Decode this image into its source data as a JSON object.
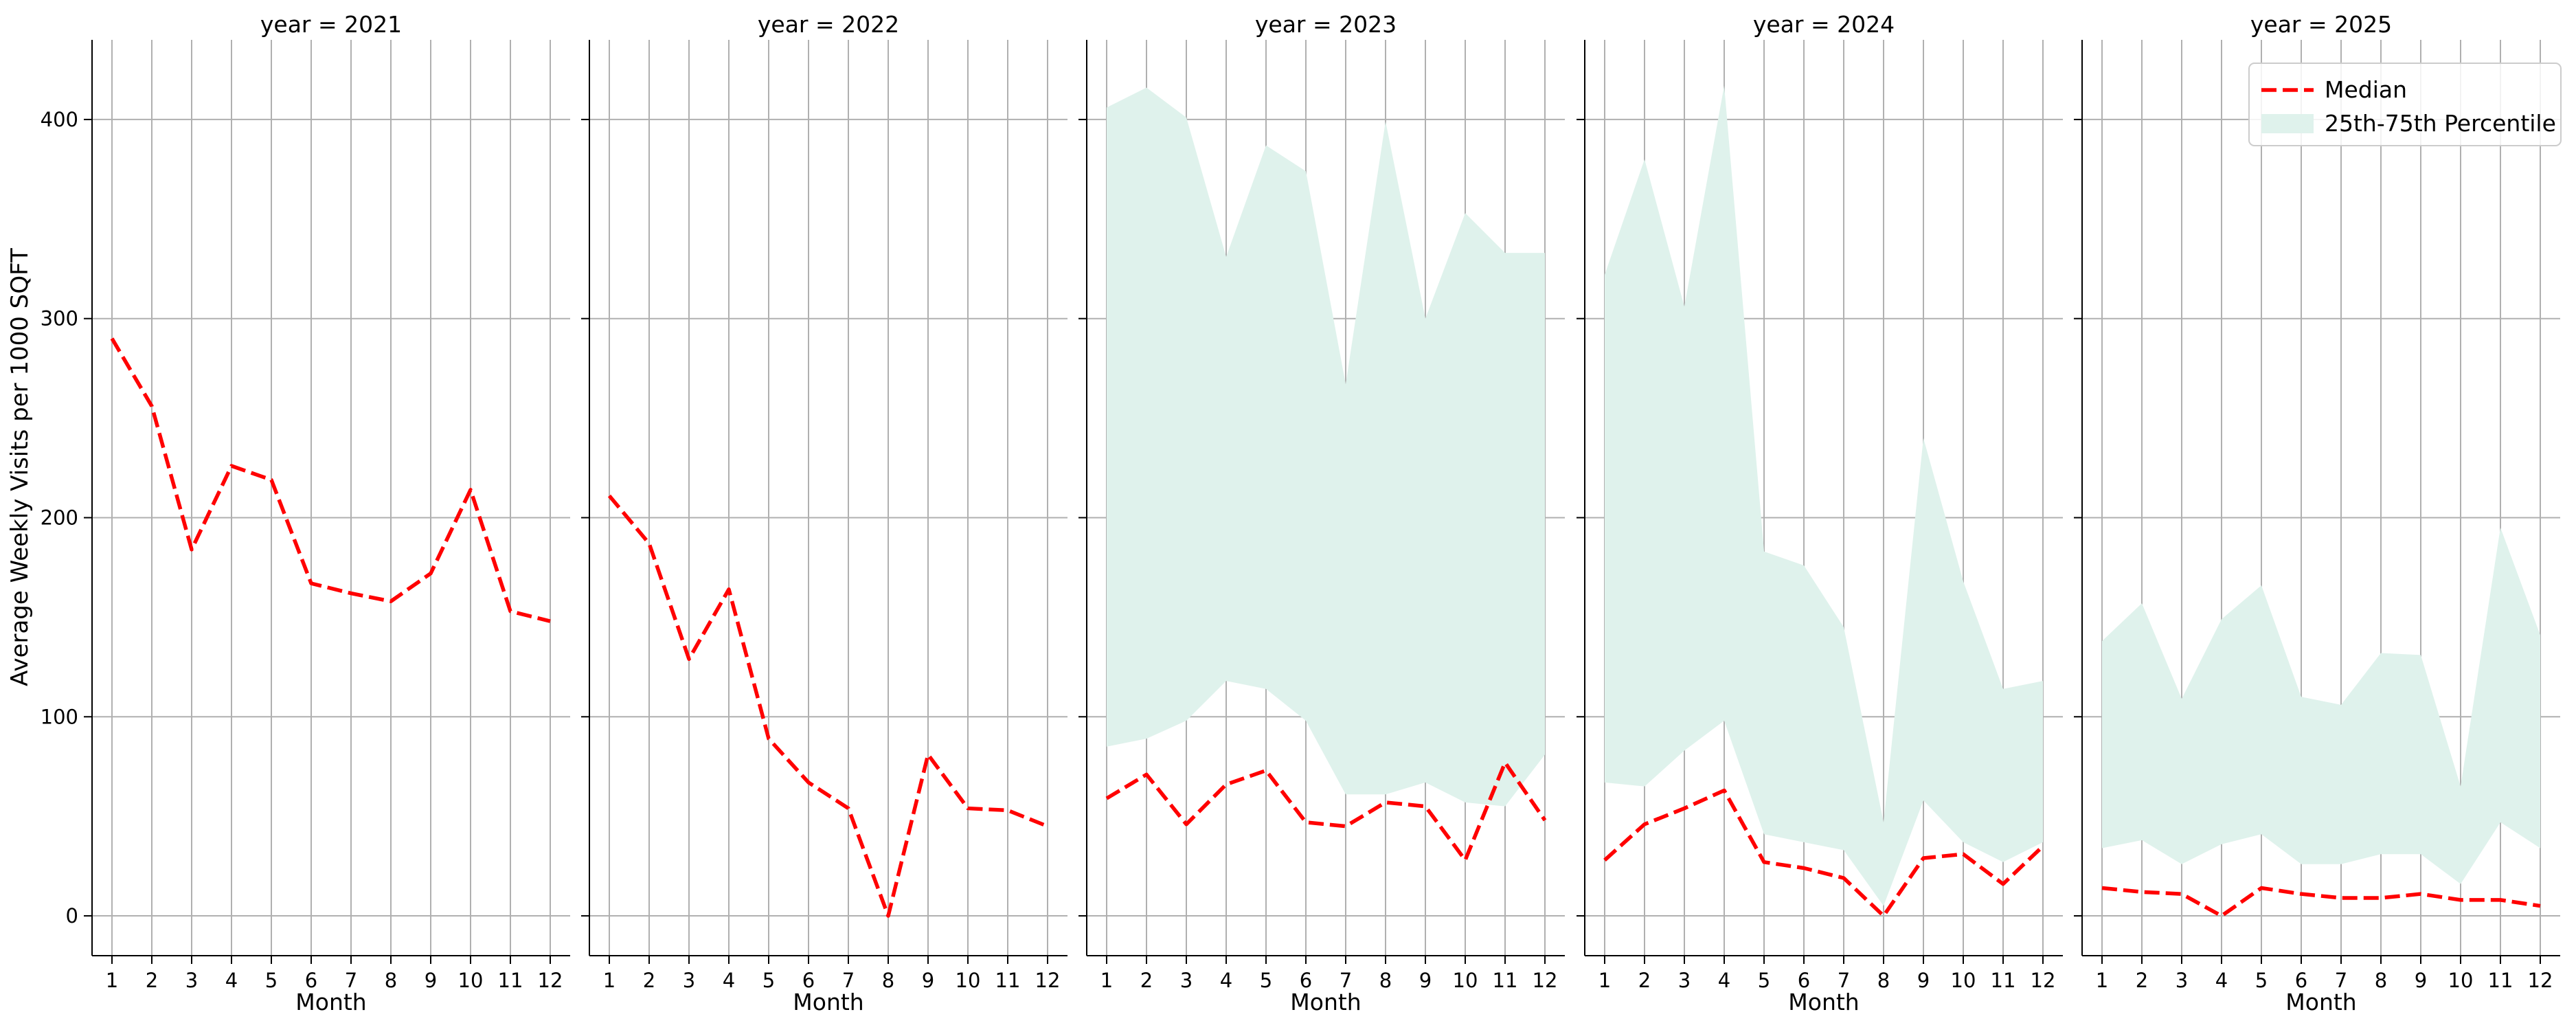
{
  "chart_data": {
    "type": "line",
    "ylabel": "Average Weekly Visits per 1000 SQFT",
    "xlabel": "Month",
    "x": [
      1,
      2,
      3,
      4,
      5,
      6,
      7,
      8,
      9,
      10,
      11,
      12
    ],
    "xtick_labels": [
      "1",
      "2",
      "3",
      "4",
      "5",
      "6",
      "7",
      "8",
      "9",
      "10",
      "11",
      "12"
    ],
    "ylim": [
      -20,
      440
    ],
    "yticks": [
      0,
      100,
      200,
      300,
      400
    ],
    "grid": true,
    "legend": {
      "placement": "top-right",
      "entries": [
        "Median",
        "25th-75th Percentile"
      ]
    },
    "colors": {
      "median": "#ff0000",
      "band": "#dff2ec",
      "grid": "#b0b0b0",
      "axis": "#000000"
    },
    "panels": [
      {
        "title": "year = 2021",
        "median": [
          290,
          256,
          184,
          226,
          219,
          167,
          162,
          158,
          172,
          214,
          153,
          148
        ],
        "p25": null,
        "p75": null
      },
      {
        "title": "year = 2022",
        "median": [
          211,
          187,
          129,
          164,
          89,
          67,
          54,
          0,
          81,
          54,
          53,
          45
        ],
        "p25": null,
        "p75": null
      },
      {
        "title": "year = 2023",
        "median": [
          59,
          71,
          46,
          66,
          73,
          47,
          45,
          57,
          55,
          28,
          77,
          48
        ],
        "p25": [
          85,
          89,
          98,
          118,
          114,
          98,
          61,
          61,
          67,
          57,
          55,
          81
        ],
        "p75": [
          406,
          416,
          401,
          331,
          387,
          374,
          267,
          399,
          300,
          353,
          333,
          333
        ]
      },
      {
        "title": "year = 2024",
        "median": [
          28,
          46,
          54,
          63,
          27,
          24,
          19,
          0,
          29,
          31,
          16,
          35
        ],
        "p25": [
          67,
          65,
          83,
          98,
          41,
          37,
          33,
          5,
          58,
          37,
          27,
          37
        ],
        "p75": [
          322,
          380,
          306,
          417,
          183,
          176,
          145,
          47,
          240,
          168,
          114,
          118
        ]
      },
      {
        "title": "year = 2025",
        "median": [
          14,
          12,
          11,
          0,
          14,
          11,
          9,
          9,
          11,
          8,
          8,
          5
        ],
        "p25": [
          34,
          38,
          26,
          36,
          41,
          26,
          26,
          31,
          31,
          16,
          47,
          34
        ],
        "p75": [
          138,
          157,
          109,
          149,
          166,
          110,
          106,
          132,
          131,
          65,
          195,
          141
        ]
      }
    ]
  }
}
